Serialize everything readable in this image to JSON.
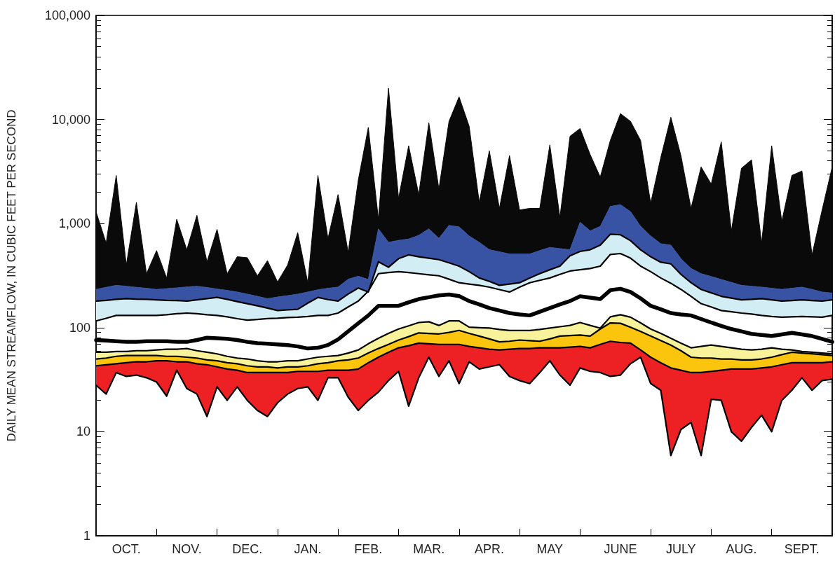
{
  "chart_data": {
    "type": "area",
    "ylabel": "DAILY MEAN STREAMFLOW, IN CUBIC FEET PER SECOND",
    "log": true,
    "grid": false,
    "marker": "none",
    "categories": [
      null,
      null,
      null,
      "OCT.",
      null,
      null,
      null,
      null,
      null,
      "NOV.",
      null,
      null,
      null,
      null,
      null,
      "DEC.",
      null,
      null,
      null,
      null,
      null,
      "JAN.",
      null,
      null,
      null,
      null,
      null,
      "FEB.",
      null,
      null,
      null,
      null,
      null,
      "MAR.",
      null,
      null,
      null,
      null,
      null,
      "APR.",
      null,
      null,
      null,
      null,
      null,
      "MAY",
      null,
      null,
      null,
      null,
      null,
      null,
      "JUNE",
      null,
      null,
      null,
      null,
      null,
      "JULY",
      null,
      null,
      null,
      null,
      null,
      "AUG.",
      null,
      null,
      null,
      null,
      null,
      "SEPT.",
      null,
      null,
      null
    ],
    "ylim": [
      1,
      100000
    ],
    "yticks": [
      1,
      10,
      100,
      {
        "value": 1000,
        "label": "1,000"
      },
      {
        "value": 10000,
        "label": "10,000"
      },
      {
        "value": 100000,
        "label": "100,000"
      }
    ],
    "series": [
      {
        "color": "#0a0a0a",
        "values": [
          1300,
          650,
          2900,
          400,
          1600,
          330,
          550,
          300,
          1100,
          560,
          1200,
          430,
          880,
          330,
          480,
          470,
          315,
          440,
          275,
          400,
          820,
          270,
          2900,
          720,
          1900,
          530,
          2600,
          8400,
          1100,
          20000,
          1750,
          5600,
          1900,
          9300,
          2150,
          9600,
          16500,
          8600,
          1600,
          5000,
          1400,
          4500,
          1350,
          1400,
          1400,
          5700,
          1150,
          6900,
          8200,
          4600,
          2800,
          6300,
          11400,
          9600,
          6300,
          1570,
          4300,
          10500,
          4500,
          1400,
          3500,
          2400,
          6100,
          850,
          3400,
          4100,
          650,
          5600,
          1050,
          2900,
          3200,
          500,
          1350,
          3500
        ]
      },
      {
        "color": "#3953a4",
        "values": [
          233,
          244,
          255,
          250,
          244,
          239,
          233,
          237,
          241,
          246,
          250,
          243,
          235,
          228,
          220,
          210,
          200,
          190,
          197,
          203,
          210,
          220,
          231,
          239,
          245,
          292,
          312,
          290,
          890,
          660,
          690,
          710,
          770,
          890,
          720,
          960,
          930,
          760,
          660,
          560,
          535,
          510,
          510,
          510,
          550,
          590,
          575,
          560,
          1030,
          850,
          940,
          1460,
          1520,
          1300,
          940,
          760,
          640,
          620,
          460,
          370,
          330,
          310,
          290,
          272,
          255,
          250,
          245,
          239,
          233,
          239,
          245,
          233,
          220,
          215
        ]
      },
      {
        "color": "#d3edf4",
        "line_style": "solid",
        "values": [
          180,
          183,
          187,
          190,
          188,
          187,
          185,
          183,
          182,
          180,
          185,
          190,
          195,
          187,
          178,
          170,
          162,
          154,
          146,
          148,
          150,
          172,
          195,
          186,
          180,
          210,
          240,
          220,
          430,
          380,
          460,
          500,
          480,
          465,
          450,
          420,
          390,
          345,
          300,
          278,
          255,
          262,
          270,
          300,
          330,
          360,
          390,
          490,
          540,
          560,
          620,
          790,
          780,
          685,
          560,
          480,
          425,
          410,
          325,
          270,
          233,
          216,
          200,
          192,
          185,
          187,
          190,
          185,
          180,
          182,
          185,
          182,
          180,
          185
        ]
      },
      {
        "type": "line",
        "color": "#000000",
        "line_style": "solid",
        "values": [
          116,
          123,
          131,
          131,
          131,
          131,
          131,
          133,
          136,
          138,
          136,
          133,
          131,
          127,
          122,
          118,
          120,
          122,
          123,
          125,
          126,
          128,
          131,
          131,
          138,
          158,
          180,
          224,
          330,
          338,
          345,
          338,
          330,
          322,
          315,
          292,
          270,
          262,
          255,
          245,
          232,
          220,
          245,
          270,
          285,
          300,
          325,
          350,
          360,
          370,
          390,
          505,
          515,
          465,
          390,
          345,
          300,
          267,
          233,
          200,
          170,
          158,
          146,
          142,
          138,
          135,
          131,
          128,
          126,
          127,
          128,
          127,
          126,
          131
        ]
      },
      {
        "type": "line",
        "color": "#000000",
        "values": [
          76,
          75,
          74,
          73,
          73,
          74,
          74,
          74,
          73,
          73,
          76,
          80,
          79,
          78,
          76,
          73,
          71,
          70,
          69,
          68,
          66,
          63,
          64,
          68,
          77,
          92,
          110,
          131,
          162,
          162,
          162,
          175,
          188,
          196,
          204,
          208,
          201,
          180,
          167,
          154,
          146,
          138,
          134,
          131,
          142,
          154,
          167,
          180,
          200,
          194,
          188,
          229,
          236,
          220,
          191,
          162,
          150,
          138,
          134,
          131,
          121,
          112,
          104,
          97,
          92,
          87,
          85,
          83,
          86,
          89,
          86,
          83,
          78,
          73
        ]
      },
      {
        "color": "#f8f39a",
        "line_style": "solid",
        "values": [
          58,
          58,
          59,
          59,
          60,
          60,
          61,
          62,
          62,
          63,
          60,
          58,
          56,
          53,
          51,
          50,
          48,
          47,
          47,
          48,
          48,
          50,
          52,
          53,
          54,
          57,
          61,
          70,
          79,
          88,
          97,
          104,
          112,
          114,
          105,
          116,
          116,
          101,
          100,
          99,
          96,
          94,
          94,
          94,
          96,
          99,
          102,
          105,
          112,
          105,
          99,
          127,
          133,
          126,
          111,
          97,
          88,
          79,
          71,
          64,
          66,
          68,
          66,
          64,
          62,
          61,
          62,
          64,
          62,
          61,
          59,
          58,
          57,
          56
        ]
      },
      {
        "color": "#fcc50d",
        "line_style": "solid",
        "values": [
          50,
          51,
          53,
          54,
          54,
          54,
          54,
          53,
          53,
          52,
          51,
          49,
          48,
          46,
          45,
          43,
          42,
          42,
          41,
          42,
          42,
          43,
          45,
          46,
          48,
          49,
          51,
          57,
          63,
          69,
          76,
          82,
          89,
          88,
          87,
          90,
          94,
          88,
          83,
          78,
          73,
          74,
          76,
          75,
          74,
          78,
          83,
          84,
          85,
          83,
          97,
          111,
          110,
          101,
          92,
          83,
          75,
          68,
          60,
          52,
          51,
          51,
          50,
          50,
          49,
          49,
          50,
          52,
          55,
          58,
          57,
          56,
          55,
          54
        ]
      },
      {
        "color": "#ed2024",
        "line_style": "solid",
        "values": [
          43,
          44,
          45,
          46,
          47,
          47,
          48,
          48,
          47,
          47,
          45,
          44,
          42,
          40,
          39,
          37,
          37,
          37,
          37,
          37,
          38,
          38,
          38,
          39,
          39,
          39,
          40,
          46,
          52,
          58,
          64,
          67,
          71,
          70,
          69,
          69,
          69,
          66,
          64,
          62,
          61,
          62,
          63,
          63,
          64,
          64,
          64,
          65,
          66,
          64,
          69,
          74,
          72,
          71,
          61,
          52,
          46,
          41,
          39,
          37,
          37,
          38,
          39,
          40,
          40,
          40,
          41,
          42,
          44,
          46,
          46,
          46,
          46,
          47
        ]
      },
      {
        "type": "line",
        "color": "#000000",
        "line_style": "solid",
        "values": [
          28,
          23,
          37,
          34,
          35,
          33,
          30,
          22,
          39,
          26,
          23,
          14,
          27,
          20,
          27,
          20,
          16,
          14,
          19,
          23,
          26,
          27,
          20,
          33,
          33,
          21.5,
          16,
          20,
          24,
          31,
          38,
          17.6,
          33,
          52,
          34,
          48,
          29,
          47,
          40,
          42,
          44,
          34,
          31,
          29,
          37,
          48,
          35,
          28,
          41,
          38,
          37,
          34,
          35,
          45,
          52,
          29,
          25,
          5.9,
          10.5,
          12.3,
          5.9,
          20.5,
          20,
          10,
          8.1,
          11,
          14.4,
          10,
          20,
          25,
          33,
          25,
          31,
          32
        ]
      }
    ]
  }
}
